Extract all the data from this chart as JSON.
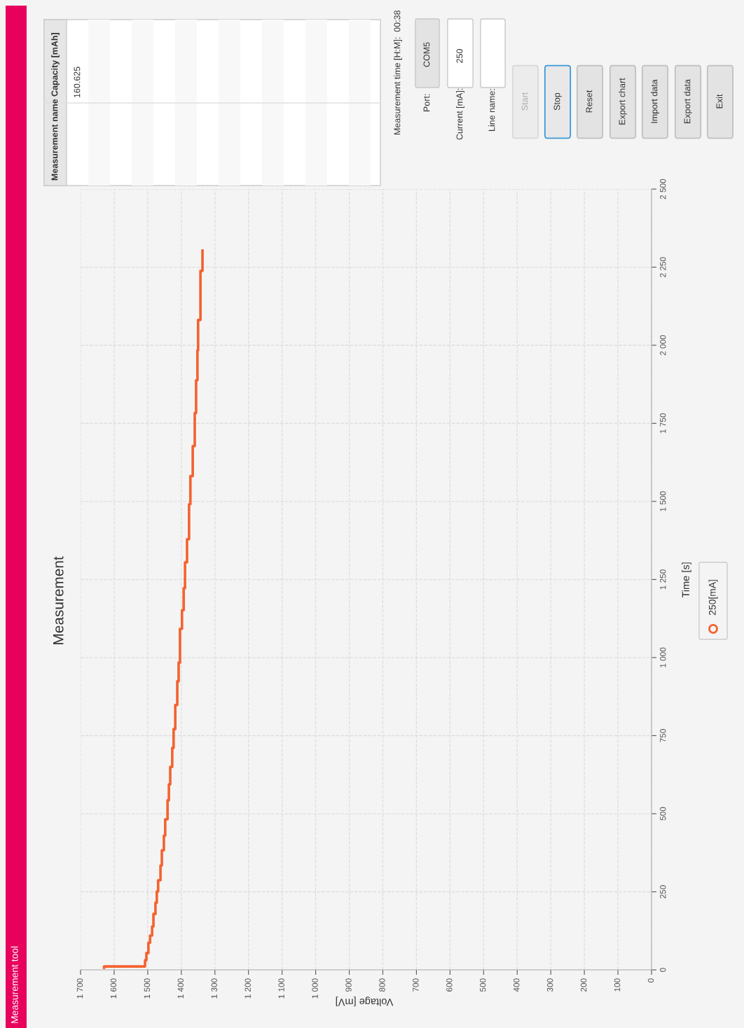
{
  "chart_data": [
    {
      "type": "line",
      "title": "Measurement",
      "xlabel": "Voltage [mV]",
      "ylabel": "Time [s]",
      "x": [
        1630,
        1630,
        1508,
        1508,
        1504,
        1504,
        1498,
        1498,
        1493,
        1493,
        1487,
        1487,
        1483,
        1483,
        1477,
        1477,
        1473,
        1473,
        1469,
        1469,
        1462,
        1462,
        1458,
        1458,
        1452,
        1452,
        1448,
        1448,
        1441,
        1441,
        1437,
        1437,
        1433,
        1433,
        1427,
        1427,
        1423,
        1423,
        1418,
        1418,
        1412,
        1412,
        1408,
        1408,
        1404,
        1404,
        1398,
        1398,
        1393,
        1393,
        1389,
        1389,
        1383,
        1383,
        1377,
        1377,
        1373,
        1373,
        1366,
        1366,
        1360,
        1360,
        1356,
        1356,
        1352,
        1352,
        1350,
        1350,
        1343,
        1343,
        1337,
        1337
      ],
      "series": [
        {
          "name": "250[mA]",
          "color": "#f4622f",
          "values": [
            7,
            11,
            11,
            31,
            31,
            54,
            54,
            87,
            87,
            110,
            110,
            139,
            139,
            179,
            179,
            215,
            215,
            251,
            251,
            287,
            287,
            334,
            334,
            383,
            383,
            430,
            430,
            482,
            482,
            543,
            543,
            594,
            594,
            650,
            650,
            711,
            711,
            771,
            771,
            848,
            848,
            924,
            924,
            984,
            984,
            1092,
            1092,
            1152,
            1152,
            1222,
            1222,
            1305,
            1305,
            1379,
            1379,
            1491,
            1491,
            1581,
            1581,
            1677,
            1677,
            1783,
            1783,
            1888,
            1888,
            1984,
            1984,
            2081,
            2081,
            2238,
            2238,
            2303
          ]
        }
      ],
      "xlim": [
        1700,
        0
      ],
      "xticks": [
        0,
        100,
        200,
        300,
        400,
        500,
        600,
        700,
        800,
        900,
        {
          "value": 1000,
          "label": "1 000"
        },
        {
          "value": 1100,
          "label": "1 100"
        },
        {
          "value": 1200,
          "label": "1 200"
        },
        {
          "value": 1300,
          "label": "1 300"
        },
        {
          "value": 1400,
          "label": "1 400"
        },
        {
          "value": 1500,
          "label": "1 500"
        },
        {
          "value": 1600,
          "label": "1 600"
        },
        {
          "value": 1700,
          "label": "1 700"
        }
      ],
      "ylim": [
        0,
        2500
      ],
      "yticks": [
        0,
        250,
        500,
        750,
        {
          "value": 1000,
          "label": "1 000"
        },
        {
          "value": 1250,
          "label": "1 250"
        },
        {
          "value": 1500,
          "label": "1 500"
        },
        {
          "value": 1750,
          "label": "1 750"
        },
        {
          "value": 2000,
          "label": "2 000"
        },
        {
          "value": 2250,
          "label": "2 250"
        },
        {
          "value": 2500,
          "label": "2 500"
        }
      ],
      "grid": true,
      "legend": "right",
      "marker": "none",
      "line_style": "solid"
    },
    {
      "type": "other",
      "title": "Measurement tool",
      "annotations": [
        "Measurement name",
        "Capacity [mAh]",
        "160.625",
        "Measurement time [H:M]:  00:38",
        "Port:",
        "COM5",
        "Current [mA]:",
        "250",
        "Line name:",
        "Start",
        "Stop",
        "Reset",
        "Export chart",
        "Import data",
        "Export data",
        "Exit"
      ]
    }
  ]
}
